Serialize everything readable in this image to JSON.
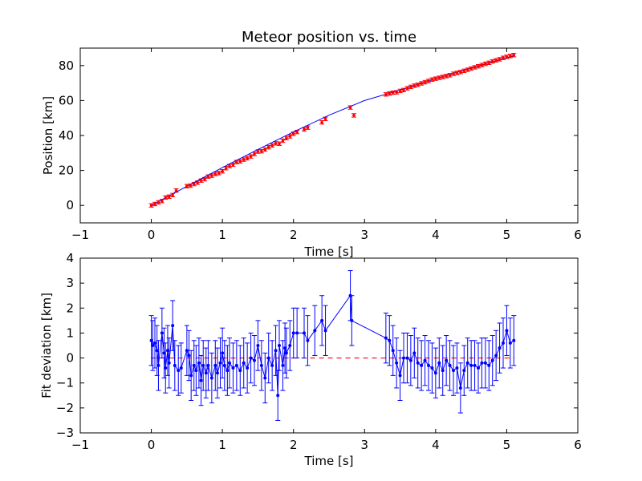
{
  "chart_data": [
    {
      "type": "scatter",
      "title": "Meteor position vs. time",
      "xlabel": "Time [s]",
      "ylabel": "Position [km]",
      "xlim": [
        -1,
        6
      ],
      "ylim": [
        -10,
        90
      ],
      "xticks": [
        -1,
        0,
        1,
        2,
        3,
        4,
        5,
        6
      ],
      "yticks": [
        0,
        20,
        40,
        60,
        80
      ],
      "grid": false,
      "series": [
        {
          "style": "red points with error bars",
          "color": "#ff0000",
          "x": [
            0.0,
            0.05,
            0.1,
            0.15,
            0.2,
            0.25,
            0.3,
            0.35,
            0.5,
            0.55,
            0.6,
            0.65,
            0.7,
            0.75,
            0.8,
            0.85,
            0.9,
            0.95,
            1.0,
            1.05,
            1.1,
            1.15,
            1.2,
            1.25,
            1.3,
            1.35,
            1.4,
            1.45,
            1.5,
            1.55,
            1.6,
            1.65,
            1.7,
            1.75,
            1.8,
            1.85,
            1.9,
            1.95,
            2.0,
            2.05,
            2.15,
            2.2,
            2.4,
            2.45,
            2.8,
            2.85,
            3.3,
            3.35,
            3.4,
            3.45,
            3.5,
            3.55,
            3.6,
            3.65,
            3.7,
            3.75,
            3.8,
            3.85,
            3.9,
            3.95,
            4.0,
            4.05,
            4.1,
            4.15,
            4.2,
            4.25,
            4.3,
            4.35,
            4.4,
            4.45,
            4.5,
            4.55,
            4.6,
            4.65,
            4.7,
            4.75,
            4.8,
            4.85,
            4.9,
            4.95,
            5.0,
            5.05,
            5.1
          ],
          "y": [
            0.0,
            0.8,
            1.7,
            2.5,
            4.5,
            5.0,
            5.9,
            8.5,
            11.0,
            11.3,
            12.2,
            13.0,
            14.2,
            15.0,
            16.5,
            17.0,
            18.0,
            18.5,
            19.5,
            21.3,
            22.5,
            23.3,
            24.8,
            25.2,
            26.2,
            27.0,
            28.0,
            29.4,
            30.8,
            31.0,
            32.0,
            33.3,
            34.3,
            35.5,
            35.3,
            37.0,
            38.5,
            39.5,
            41.0,
            42.0,
            43.5,
            44.5,
            47.5,
            49.5,
            56.0,
            51.5,
            63.5,
            64.0,
            64.5,
            64.7,
            65.5,
            66.0,
            67.0,
            67.8,
            68.5,
            69.0,
            69.8,
            70.5,
            71.2,
            72.0,
            72.5,
            73.0,
            73.5,
            74.0,
            74.5,
            75.3,
            75.8,
            76.3,
            77.0,
            77.6,
            78.3,
            79.0,
            79.6,
            80.3,
            81.0,
            81.6,
            82.4,
            83.0,
            83.6,
            84.4,
            85.0,
            85.5,
            86.0
          ],
          "yerr": 1.0
        },
        {
          "style": "blue fit line",
          "color": "#0000ff",
          "x": [
            0.0,
            0.5,
            1.0,
            1.5,
            2.0,
            2.5,
            3.0,
            3.5,
            4.0,
            4.5,
            5.0,
            5.1
          ],
          "y": [
            0.0,
            10.9,
            21.6,
            32.0,
            42.0,
            51.6,
            60.0,
            66.0,
            72.5,
            78.6,
            84.5,
            85.7
          ]
        }
      ]
    },
    {
      "type": "line",
      "title": "",
      "xlabel": "Time [s]",
      "ylabel": "Fit deviation [km]",
      "xlim": [
        -1,
        6
      ],
      "ylim": [
        -3,
        4
      ],
      "xticks": [
        -1,
        0,
        1,
        2,
        3,
        4,
        5,
        6
      ],
      "yticks": [
        -3,
        -2,
        -1,
        0,
        1,
        2,
        3,
        4
      ],
      "grid": false,
      "series": [
        {
          "style": "blue dotted line with error bars",
          "color": "#0000ff",
          "x": [
            0.0,
            0.02,
            0.05,
            0.08,
            0.1,
            0.15,
            0.18,
            0.2,
            0.23,
            0.25,
            0.3,
            0.33,
            0.38,
            0.42,
            0.5,
            0.53,
            0.56,
            0.6,
            0.63,
            0.67,
            0.7,
            0.73,
            0.77,
            0.8,
            0.85,
            0.9,
            0.93,
            0.97,
            1.0,
            1.03,
            1.07,
            1.1,
            1.15,
            1.2,
            1.25,
            1.3,
            1.35,
            1.4,
            1.45,
            1.5,
            1.55,
            1.6,
            1.65,
            1.7,
            1.75,
            1.78,
            1.8,
            1.85,
            1.88,
            1.9,
            1.95,
            2.0,
            2.05,
            2.15,
            2.2,
            2.3,
            2.4,
            2.45,
            2.8,
            2.82,
            3.3,
            3.35,
            3.4,
            3.45,
            3.5,
            3.55,
            3.6,
            3.65,
            3.7,
            3.75,
            3.8,
            3.85,
            3.9,
            3.95,
            4.0,
            4.05,
            4.1,
            4.15,
            4.2,
            4.25,
            4.3,
            4.35,
            4.4,
            4.45,
            4.5,
            4.55,
            4.6,
            4.65,
            4.7,
            4.75,
            4.8,
            4.85,
            4.9,
            4.95,
            5.0,
            5.05,
            5.1
          ],
          "y": [
            0.7,
            0.5,
            0.6,
            0.3,
            -0.3,
            1.0,
            0.2,
            -0.4,
            0.3,
            -0.2,
            1.3,
            -0.3,
            -0.5,
            -0.4,
            0.3,
            0.1,
            -0.7,
            -0.3,
            -0.5,
            -0.2,
            -0.9,
            -0.3,
            -0.6,
            -0.3,
            -0.8,
            -0.3,
            -0.6,
            -0.2,
            0.2,
            -0.3,
            -0.5,
            -0.2,
            -0.4,
            -0.3,
            -0.5,
            -0.2,
            -0.4,
            0.0,
            -0.1,
            0.5,
            -0.3,
            -0.8,
            0.0,
            -0.3,
            0.3,
            -1.5,
            0.5,
            -0.3,
            0.4,
            0.2,
            0.5,
            1.0,
            1.0,
            1.0,
            0.7,
            1.1,
            1.5,
            1.1,
            2.5,
            1.5,
            0.8,
            0.7,
            0.3,
            -0.2,
            -0.7,
            0.0,
            0.0,
            -0.1,
            0.2,
            -0.2,
            -0.3,
            -0.1,
            -0.3,
            -0.4,
            -0.6,
            -0.2,
            -0.5,
            -0.1,
            -0.3,
            -0.5,
            -0.4,
            -1.2,
            -0.5,
            -0.2,
            -0.3,
            -0.3,
            -0.4,
            -0.2,
            -0.2,
            -0.3,
            -0.1,
            0.1,
            0.4,
            0.6,
            1.1,
            0.6,
            0.7
          ],
          "yerr": 1.0
        },
        {
          "style": "red dashed zero line",
          "color": "#ff0000",
          "x": [
            0.0,
            5.1
          ],
          "y": [
            0.0,
            0.0
          ]
        }
      ]
    }
  ]
}
